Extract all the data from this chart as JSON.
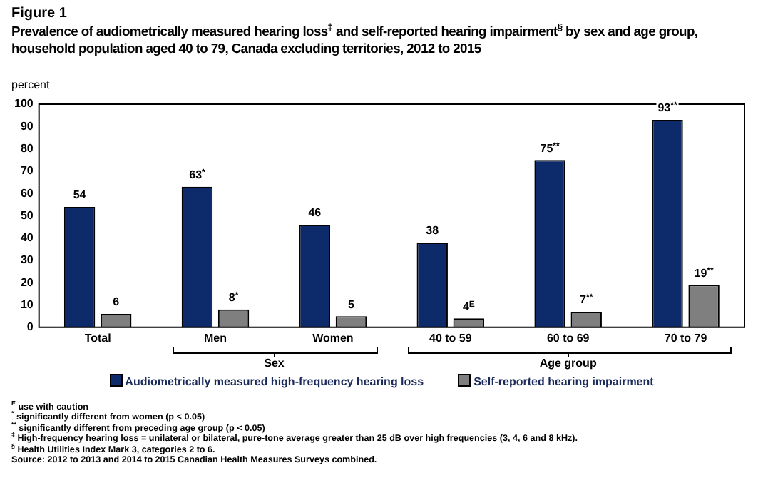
{
  "chart_data": {
    "type": "bar",
    "title": "Figure 1",
    "subtitle": "Prevalence of audiometrically measured hearing loss$^{‡}$ and self-reported hearing impairment$^{§}$ by sex and age group, household population aged 40 to 79, Canada excluding territories, 2012 to 2015",
    "ylabel": "percent",
    "categories": [
      "Total",
      "Men",
      "Women",
      "40 to 59",
      "60 to 69",
      "70 to 79"
    ],
    "series": [
      {
        "name": "Audiometrically measured high-frequency hearing loss",
        "color": "#0d2a6b",
        "values": [
          54,
          63,
          46,
          38,
          75,
          93
        ],
        "value_labels": [
          "54",
          "63$^{*}$",
          "46",
          "38",
          "75$^{**}$",
          "93$^{**}$"
        ]
      },
      {
        "name": "Self-reported hearing impairment",
        "color": "#7f7f7f",
        "values": [
          6,
          8,
          5,
          4,
          7,
          19
        ],
        "value_labels": [
          "6",
          "8$^{*}$",
          "5",
          "4$^{E}$",
          "7$^{**}$",
          "19$^{**}$"
        ]
      }
    ],
    "ylim": [
      0,
      100
    ],
    "yticks": [
      0,
      10,
      20,
      30,
      40,
      50,
      60,
      70,
      80,
      90,
      100
    ],
    "grid": false,
    "legend": "bottom",
    "annotations": [
      "Sex",
      "Age group",
      "$^{E}$ use with caution",
      "$^{*}$ significantly different from women (p < 0.05)",
      "$^{**}$ significantly different from preceding age group (p < 0.05)",
      "$^{‡}$ High-frequency hearing loss = unilateral or bilateral, pure-tone average greater than 25 dB over high frequencies (3, 4, 6 and 8 kHz).",
      "$^{§}$ Health Utilities Index Mark 3, categories 2 to 6.",
      "Source: 2012 to 2013 and 2014 to 2015 Canadian Health Measures Surveys combined."
    ]
  }
}
